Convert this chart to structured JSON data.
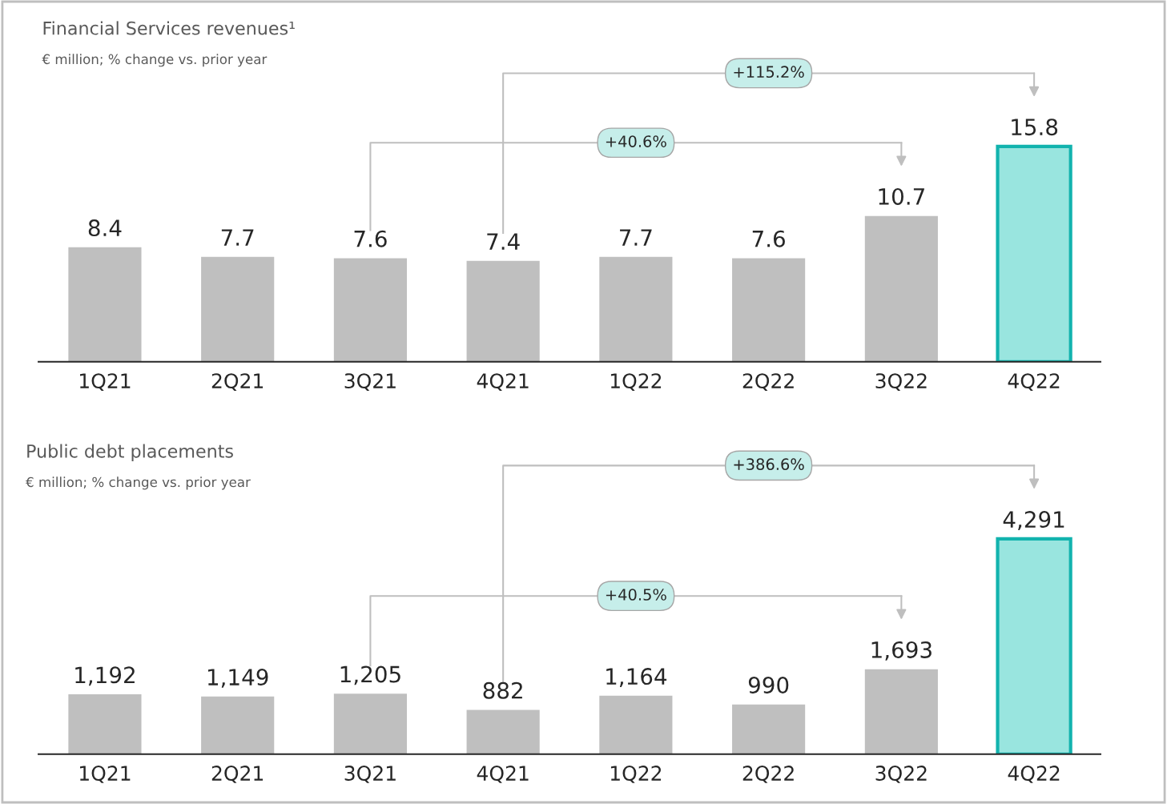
{
  "chart_data": [
    {
      "type": "bar",
      "title": "Financial Services revenues¹",
      "subtitle": "€ million; % change vs. prior year",
      "categories": [
        "1Q21",
        "2Q21",
        "3Q21",
        "4Q21",
        "1Q22",
        "2Q22",
        "3Q22",
        "4Q22"
      ],
      "values": [
        8.4,
        7.7,
        7.6,
        7.4,
        7.7,
        7.6,
        10.7,
        15.8
      ],
      "colors": [
        "#bfbfbf",
        "#bfbfbf",
        "#bfbfbf",
        "#bfbfbf",
        "#bfbfbf",
        "#bfbfbf",
        "#bfbfbf",
        "#99e5df"
      ],
      "data_labels": true,
      "grid": false,
      "legend": false,
      "tick_labels": "x",
      "annotations": [
        "+115.2%",
        "+40.6%"
      ]
    },
    {
      "type": "bar",
      "title": "Public debt placements",
      "subtitle": "€ million; % change vs. prior year",
      "categories": [
        "1Q21",
        "2Q21",
        "3Q21",
        "4Q21",
        "1Q22",
        "2Q22",
        "3Q22",
        "4Q22"
      ],
      "values": [
        1192,
        1149,
        1205,
        882,
        1164,
        990,
        1693,
        4291
      ],
      "value_labels": [
        "1,192",
        "1,149",
        "1,205",
        "882",
        "1,164",
        "990",
        "1,693",
        "4,291"
      ],
      "colors": [
        "#bfbfbf",
        "#bfbfbf",
        "#bfbfbf",
        "#bfbfbf",
        "#bfbfbf",
        "#bfbfbf",
        "#bfbfbf",
        "#99e5df"
      ],
      "grid": false,
      "legend": false,
      "tick_labels": "x",
      "annotations": [
        "+386.6%",
        "+40.5%"
      ]
    }
  ]
}
